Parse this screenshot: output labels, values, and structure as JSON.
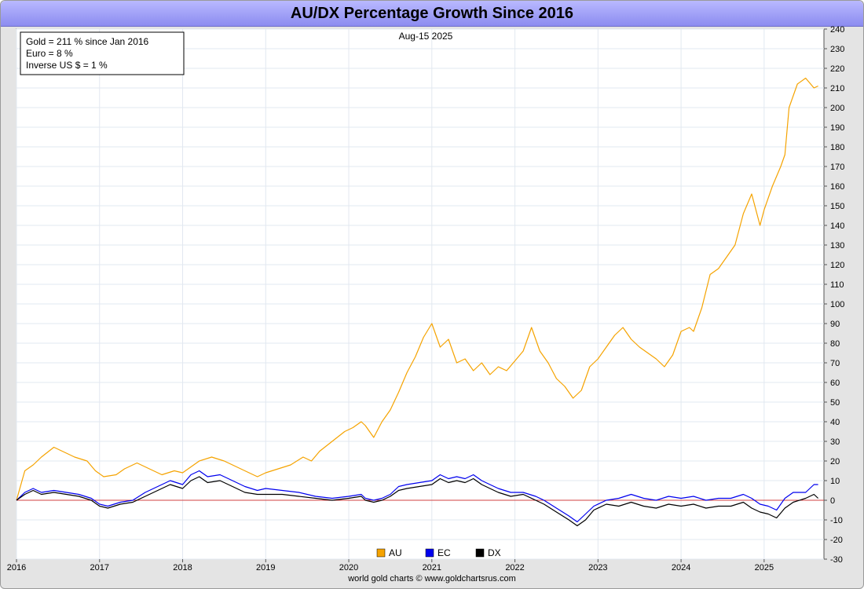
{
  "title": "AU/DX Percentage Growth Since 2016",
  "date_label": "Aug-15  2025",
  "footer": "world gold charts © www.goldchartsrus.com",
  "info_box": [
    "Gold = 211 % since Jan 2016",
    "Euro = 8 %",
    "Inverse US $ = 1 %"
  ],
  "colors": {
    "AU": "#f5a300",
    "EC": "#0000ee",
    "DX": "#000000",
    "zero_line": "#d04040"
  },
  "chart_data": {
    "type": "line",
    "title": "AU/DX Percentage Growth Since 2016",
    "xlabel": "",
    "ylabel": "",
    "xlim": [
      2016.0,
      2025.72
    ],
    "ylim": [
      -30,
      240
    ],
    "x_ticks": [
      "2016",
      "2017",
      "2018",
      "2019",
      "2020",
      "2021",
      "2022",
      "2023",
      "2024",
      "2025"
    ],
    "y_ticks": [
      -30,
      -20,
      -10,
      0,
      10,
      20,
      30,
      40,
      50,
      60,
      70,
      80,
      90,
      100,
      110,
      120,
      130,
      140,
      150,
      160,
      170,
      180,
      190,
      200,
      210,
      220,
      230,
      240
    ],
    "grid": true,
    "legend_position": "bottom-center",
    "series": [
      {
        "name": "AU",
        "color": "#f5a300",
        "x": [
          2016.0,
          2016.1,
          2016.2,
          2016.3,
          2016.45,
          2016.55,
          2016.7,
          2016.85,
          2016.95,
          2017.05,
          2017.2,
          2017.3,
          2017.45,
          2017.6,
          2017.75,
          2017.9,
          2018.0,
          2018.1,
          2018.2,
          2018.35,
          2018.5,
          2018.6,
          2018.75,
          2018.9,
          2019.0,
          2019.15,
          2019.3,
          2019.45,
          2019.55,
          2019.65,
          2019.8,
          2019.95,
          2020.05,
          2020.15,
          2020.2,
          2020.3,
          2020.4,
          2020.5,
          2020.6,
          2020.7,
          2020.8,
          2020.9,
          2021.0,
          2021.1,
          2021.2,
          2021.3,
          2021.4,
          2021.5,
          2021.6,
          2021.7,
          2021.8,
          2021.9,
          2022.0,
          2022.1,
          2022.2,
          2022.3,
          2022.4,
          2022.5,
          2022.6,
          2022.7,
          2022.8,
          2022.9,
          2023.0,
          2023.1,
          2023.2,
          2023.3,
          2023.4,
          2023.5,
          2023.6,
          2023.7,
          2023.8,
          2023.9,
          2024.0,
          2024.1,
          2024.15,
          2024.25,
          2024.35,
          2024.45,
          2024.55,
          2024.65,
          2024.75,
          2024.85,
          2024.95,
          2025.0,
          2025.1,
          2025.2,
          2025.25,
          2025.3,
          2025.4,
          2025.5,
          2025.6,
          2025.65
        ],
        "y": [
          0,
          15,
          18,
          22,
          27,
          25,
          22,
          20,
          15,
          12,
          13,
          16,
          19,
          16,
          13,
          15,
          14,
          17,
          20,
          22,
          20,
          18,
          15,
          12,
          14,
          16,
          18,
          22,
          20,
          25,
          30,
          35,
          37,
          40,
          38,
          32,
          40,
          46,
          55,
          65,
          73,
          83,
          90,
          78,
          82,
          70,
          72,
          66,
          70,
          64,
          68,
          66,
          71,
          76,
          88,
          76,
          70,
          62,
          58,
          52,
          56,
          68,
          72,
          78,
          84,
          88,
          82,
          78,
          75,
          72,
          68,
          74,
          86,
          88,
          86,
          98,
          115,
          118,
          124,
          130,
          146,
          156,
          140,
          148,
          160,
          170,
          176,
          200,
          212,
          215,
          210,
          211
        ]
      },
      {
        "name": "EC",
        "color": "#0000ee",
        "x": [
          2016.0,
          2016.1,
          2016.2,
          2016.3,
          2016.45,
          2016.6,
          2016.75,
          2016.9,
          2017.0,
          2017.1,
          2017.25,
          2017.4,
          2017.55,
          2017.7,
          2017.85,
          2018.0,
          2018.1,
          2018.2,
          2018.3,
          2018.45,
          2018.6,
          2018.75,
          2018.9,
          2019.0,
          2019.2,
          2019.4,
          2019.6,
          2019.8,
          2020.0,
          2020.15,
          2020.2,
          2020.3,
          2020.4,
          2020.5,
          2020.6,
          2020.7,
          2020.85,
          2021.0,
          2021.1,
          2021.2,
          2021.3,
          2021.4,
          2021.5,
          2021.6,
          2021.7,
          2021.8,
          2021.95,
          2022.1,
          2022.25,
          2022.35,
          2022.5,
          2022.65,
          2022.75,
          2022.85,
          2022.95,
          2023.1,
          2023.25,
          2023.4,
          2023.55,
          2023.7,
          2023.85,
          2024.0,
          2024.15,
          2024.3,
          2024.45,
          2024.6,
          2024.75,
          2024.85,
          2024.95,
          2025.05,
          2025.15,
          2025.25,
          2025.35,
          2025.5,
          2025.6,
          2025.65
        ],
        "y": [
          0,
          4,
          6,
          4,
          5,
          4,
          3,
          1,
          -2,
          -3,
          -1,
          0,
          4,
          7,
          10,
          8,
          13,
          15,
          12,
          13,
          10,
          7,
          5,
          6,
          5,
          4,
          2,
          1,
          2,
          3,
          1,
          0,
          1,
          3,
          7,
          8,
          9,
          10,
          13,
          11,
          12,
          11,
          13,
          10,
          8,
          6,
          4,
          4,
          2,
          0,
          -4,
          -8,
          -11,
          -7,
          -3,
          0,
          1,
          3,
          1,
          0,
          2,
          1,
          2,
          0,
          1,
          1,
          3,
          1,
          -2,
          -3,
          -5,
          1,
          4,
          4,
          8,
          8
        ]
      },
      {
        "name": "DX",
        "color": "#000000",
        "x": [
          2016.0,
          2016.1,
          2016.2,
          2016.3,
          2016.45,
          2016.6,
          2016.75,
          2016.9,
          2017.0,
          2017.1,
          2017.25,
          2017.4,
          2017.55,
          2017.7,
          2017.85,
          2018.0,
          2018.1,
          2018.2,
          2018.3,
          2018.45,
          2018.6,
          2018.75,
          2018.9,
          2019.0,
          2019.2,
          2019.4,
          2019.6,
          2019.8,
          2020.0,
          2020.15,
          2020.2,
          2020.3,
          2020.4,
          2020.5,
          2020.6,
          2020.7,
          2020.85,
          2021.0,
          2021.1,
          2021.2,
          2021.3,
          2021.4,
          2021.5,
          2021.6,
          2021.7,
          2021.8,
          2021.95,
          2022.1,
          2022.25,
          2022.35,
          2022.5,
          2022.65,
          2022.75,
          2022.85,
          2022.95,
          2023.1,
          2023.25,
          2023.4,
          2023.55,
          2023.7,
          2023.85,
          2024.0,
          2024.15,
          2024.3,
          2024.45,
          2024.6,
          2024.75,
          2024.85,
          2024.95,
          2025.05,
          2025.15,
          2025.25,
          2025.35,
          2025.5,
          2025.6,
          2025.65
        ],
        "y": [
          0,
          3,
          5,
          3,
          4,
          3,
          2,
          0,
          -3,
          -4,
          -2,
          -1,
          2,
          5,
          8,
          6,
          10,
          12,
          9,
          10,
          7,
          4,
          3,
          3,
          3,
          2,
          1,
          0,
          1,
          2,
          0,
          -1,
          0,
          2,
          5,
          6,
          7,
          8,
          11,
          9,
          10,
          9,
          11,
          8,
          6,
          4,
          2,
          3,
          0,
          -2,
          -6,
          -10,
          -13,
          -10,
          -5,
          -2,
          -3,
          -1,
          -3,
          -4,
          -2,
          -3,
          -2,
          -4,
          -3,
          -3,
          -1,
          -4,
          -6,
          -7,
          -9,
          -4,
          -1,
          1,
          3,
          1
        ]
      }
    ]
  }
}
